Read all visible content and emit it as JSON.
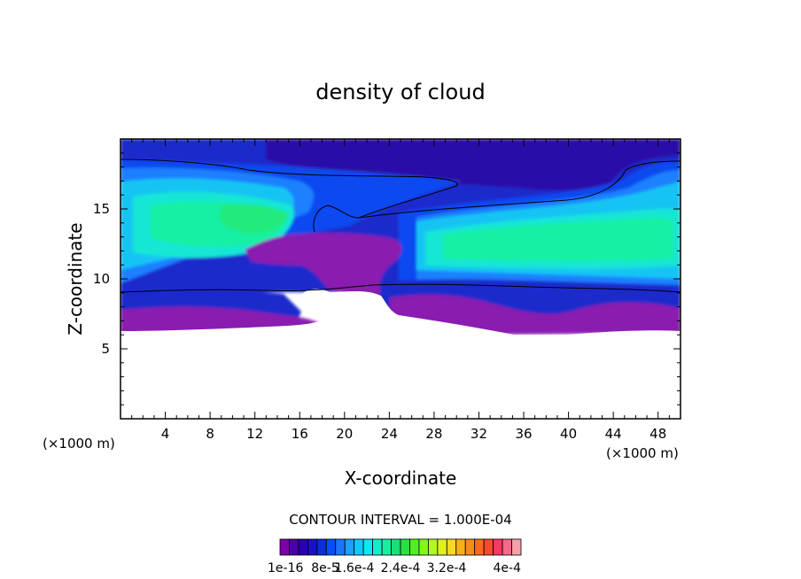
{
  "chart_data": {
    "type": "heatmap",
    "title": "density of cloud",
    "xlabel": "X-coordinate",
    "ylabel": "Z-coordinate",
    "x_unit_left": "(×1000 m)",
    "x_unit_right": "(×1000 m)",
    "xlim": [
      0,
      50
    ],
    "ylim": [
      0,
      20
    ],
    "x_ticks": [
      "4",
      "8",
      "12",
      "16",
      "20",
      "24",
      "28",
      "32",
      "36",
      "40",
      "44",
      "48"
    ],
    "y_ticks": [
      "5",
      "10",
      "15"
    ],
    "contour_interval_label": "CONTOUR INTERVAL = 1.000E-04",
    "colorbar_labels": [
      "1e-16",
      "8e-5",
      "1.6e-4",
      "2.4e-4",
      "3.2e-4",
      "4e-4"
    ],
    "colorbar_colors": [
      "#7a00a8",
      "#4b00a5",
      "#2a00b0",
      "#1a10c8",
      "#0a2ed8",
      "#0050ff",
      "#1a74ff",
      "#1aa0ff",
      "#12c8ff",
      "#10e6f0",
      "#10f0c8",
      "#14f0a0",
      "#18e078",
      "#28e040",
      "#50f020",
      "#80f818",
      "#b0f820",
      "#e0f020",
      "#f8d820",
      "#f8b018",
      "#f88a18",
      "#f86a20",
      "#f84830",
      "#f83860",
      "#f86888",
      "#f8a0a8"
    ],
    "field_colors": {
      "v0": "#8a1ab0",
      "v1": "#2a10a8",
      "v2": "#1a2ccc",
      "v3": "#0848f0",
      "v4": "#1a80ff",
      "v5": "#18c4f4",
      "v6": "#12e6d4",
      "v7": "#14f0a4",
      "v8": "#22ea7c"
    }
  }
}
